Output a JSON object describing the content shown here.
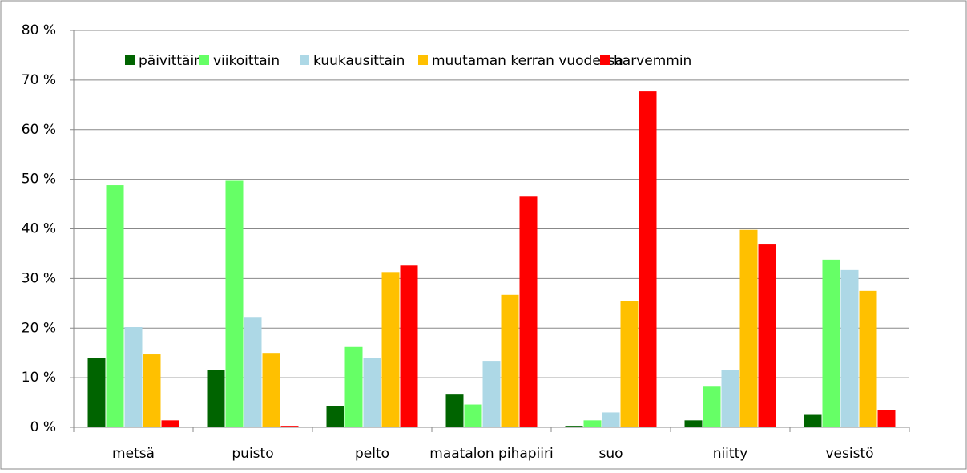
{
  "chart_data": {
    "type": "bar",
    "categories": [
      "metsä",
      "puisto",
      "pelto",
      "maatalon pihapiiri",
      "suo",
      "niitty",
      "vesistö"
    ],
    "series": [
      {
        "name": "päivittäin",
        "color": "#006400",
        "values": [
          13.9,
          11.6,
          4.3,
          6.6,
          0.3,
          1.4,
          2.5
        ]
      },
      {
        "name": "viikoittain",
        "color": "#66ff66",
        "values": [
          48.8,
          49.7,
          16.2,
          4.6,
          1.4,
          8.2,
          33.8
        ]
      },
      {
        "name": "kuukausittain",
        "color": "#add8e6",
        "values": [
          20.2,
          22.1,
          14.0,
          13.4,
          3.0,
          11.6,
          31.7
        ]
      },
      {
        "name": "muutaman kerran vuodessa",
        "color": "#ffc000",
        "values": [
          14.7,
          15.0,
          31.3,
          26.7,
          25.4,
          39.8,
          27.5
        ]
      },
      {
        "name": "harvemmin",
        "color": "#ff0000",
        "values": [
          1.4,
          0.3,
          32.6,
          46.5,
          67.7,
          37.0,
          3.5
        ]
      }
    ],
    "ylim": [
      0,
      80
    ],
    "yticks": [
      {
        "value": 0,
        "label": "0 %"
      },
      {
        "value": 10,
        "label": "10 %"
      },
      {
        "value": 20,
        "label": "20 %"
      },
      {
        "value": 30,
        "label": "30 %"
      },
      {
        "value": 40,
        "label": "40 %"
      },
      {
        "value": 50,
        "label": "50 %"
      },
      {
        "value": 60,
        "label": "60 %"
      },
      {
        "value": 70,
        "label": "70 %"
      },
      {
        "value": 80,
        "label": "80 %"
      }
    ],
    "grid": true,
    "legend": "top"
  }
}
